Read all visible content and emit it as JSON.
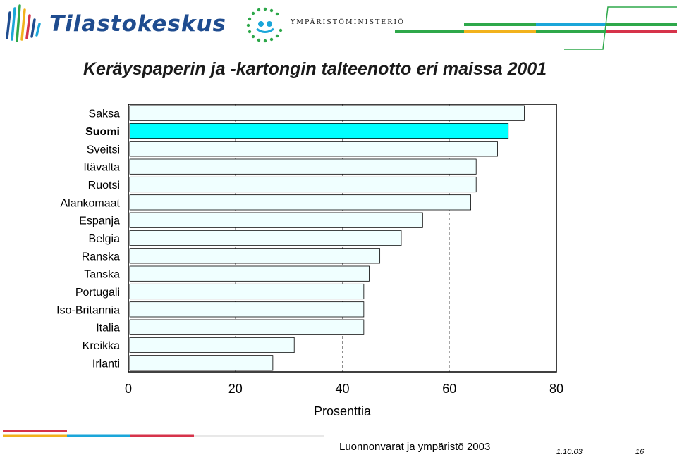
{
  "header": {
    "logo_text": "Tilastokeskus",
    "ministry_text": "YMPÄRISTÖMINISTERIÖ"
  },
  "colors": {
    "bar_fill": "#f0ffff",
    "bar_highlight": "#00ffff",
    "bar_stroke": "#000000",
    "accent_blue": "#1f4c8f",
    "accent_green": "#2ea84a",
    "accent_yellow": "#f2b21c",
    "accent_red": "#d6334a",
    "accent_cyan": "#1ba6d9"
  },
  "chart_data": {
    "type": "bar",
    "orientation": "horizontal",
    "title": "Keräyspaperin ja -kartongin talteenotto eri maissa 2001",
    "xlabel": "Prosenttia",
    "ylabel": "",
    "xlim": [
      0,
      80
    ],
    "xticks": [
      "0",
      "20",
      "40",
      "60",
      "80"
    ],
    "grid": "vertical dashed at 20, 40, 60",
    "highlight_category": "Suomi",
    "categories": [
      "Saksa",
      "Suomi",
      "Sveitsi",
      "Itävalta",
      "Ruotsi",
      "Alankomaat",
      "Espanja",
      "Belgia",
      "Ranska",
      "Tanska",
      "Portugali",
      "Iso-Britannia",
      "Italia",
      "Kreikka",
      "Irlanti"
    ],
    "values": [
      74,
      71,
      69,
      65,
      65,
      64,
      55,
      51,
      47,
      45,
      44,
      44,
      44,
      31,
      27
    ]
  },
  "footer": {
    "source": "Luonnonvarat ja ympäristö 2003",
    "date": "1.10.03",
    "page": "16"
  }
}
